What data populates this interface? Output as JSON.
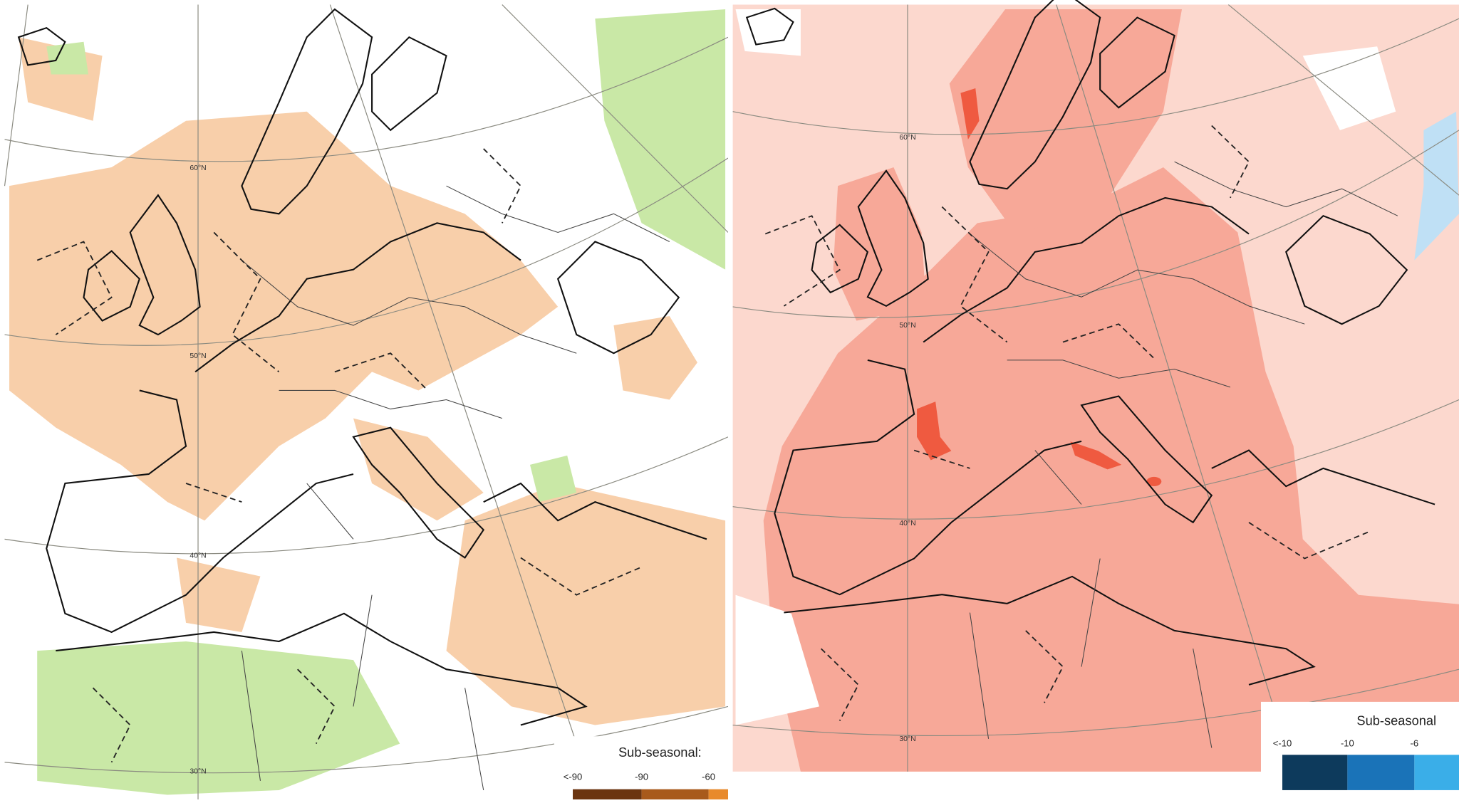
{
  "left_map": {
    "latitude_labels": [
      "60°N",
      "50°N",
      "40°N",
      "30°N"
    ],
    "legend": {
      "title": "Sub-seasonal:",
      "labels": [
        "<-90",
        "-90",
        "-60"
      ]
    }
  },
  "right_map": {
    "latitude_labels": [
      "60°N",
      "50°N",
      "40°N",
      "30°N"
    ],
    "legend": {
      "title": "Sub-seasonal",
      "labels": [
        "<-10",
        "-10",
        "-6"
      ]
    }
  }
}
